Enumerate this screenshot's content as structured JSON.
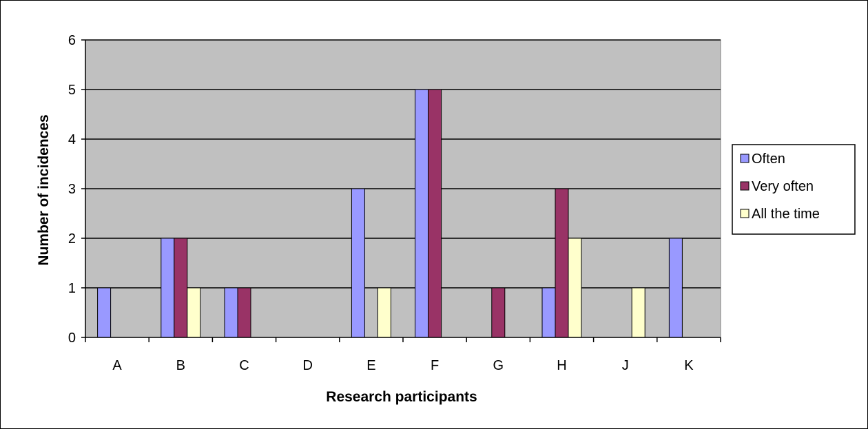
{
  "chart_data": {
    "type": "bar",
    "title": "",
    "xlabel": "Research participants",
    "ylabel": "Number of incidences",
    "categories": [
      "A",
      "B",
      "C",
      "D",
      "E",
      "F",
      "G",
      "H",
      "J",
      "K"
    ],
    "series": [
      {
        "name": "Often",
        "color": "#9999ff",
        "values": [
          1,
          2,
          1,
          0,
          3,
          5,
          0,
          1,
          0,
          2
        ]
      },
      {
        "name": "Very often",
        "color": "#993366",
        "values": [
          0,
          2,
          1,
          0,
          0,
          5,
          1,
          3,
          0,
          0
        ]
      },
      {
        "name": "All the time",
        "color": "#ffffcc",
        "values": [
          0,
          1,
          0,
          0,
          1,
          0,
          0,
          2,
          1,
          0
        ]
      }
    ],
    "ylim": [
      0,
      6
    ],
    "yticks": [
      0,
      1,
      2,
      3,
      4,
      5,
      6
    ],
    "grid": true,
    "plot_background": "#c0c0c0",
    "legend_position": "right"
  }
}
